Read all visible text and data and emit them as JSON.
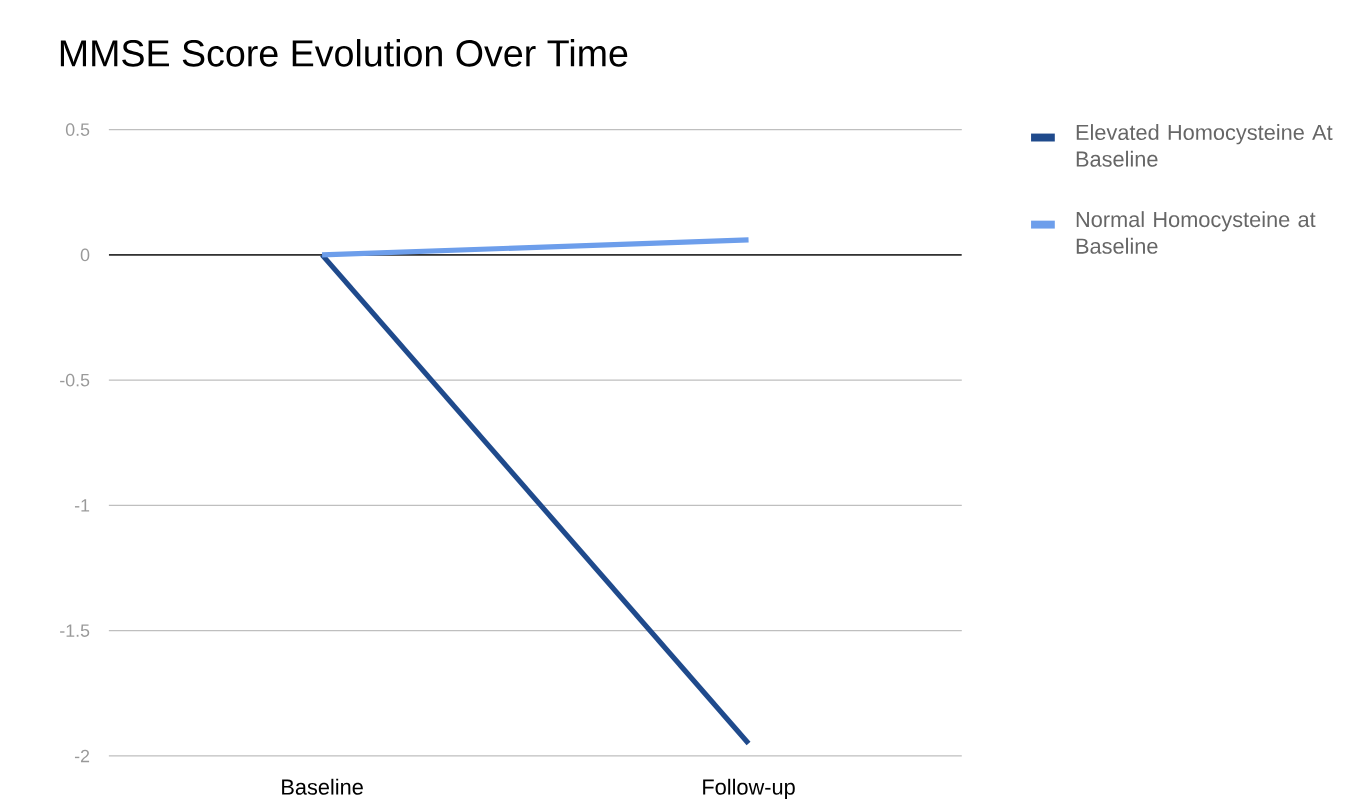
{
  "chart_data": {
    "type": "line",
    "title": "MMSE Score Evolution Over Time",
    "categories": [
      "Baseline",
      "Follow-up"
    ],
    "series": [
      {
        "name": "Elevated Homocysteine At Baseline",
        "color": "#1f4a8c",
        "values": [
          0,
          -1.95
        ]
      },
      {
        "name": "Normal Homocysteine at Baseline",
        "color": "#6d9eeb",
        "values": [
          0,
          0.06
        ]
      }
    ],
    "ylim": [
      -2,
      0.5
    ],
    "yticks": [
      -2,
      -1.5,
      -1,
      -0.5,
      0,
      0.5
    ],
    "ref_lines": [
      {
        "axis": "y",
        "value": 0,
        "color": "#333333"
      }
    ],
    "grid": "y",
    "legend": "top right",
    "marker": "none",
    "line_style": "solid"
  }
}
